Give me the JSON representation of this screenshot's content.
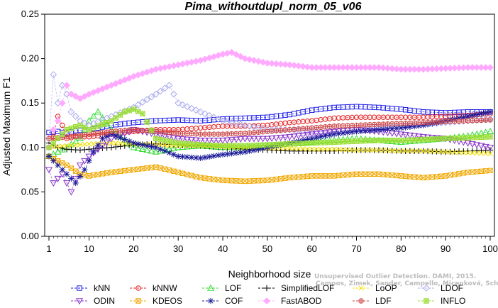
{
  "chart_data": {
    "type": "line",
    "title": "Pima_withoutdupl_norm_05_v06",
    "xlabel": "Neighborhood size",
    "ylabel": "Adjusted Maximum F1",
    "xlim": [
      1,
      100
    ],
    "ylim": [
      0.0,
      0.25
    ],
    "xticks": [
      1,
      10,
      20,
      30,
      40,
      50,
      60,
      70,
      80,
      90,
      100
    ],
    "yticks": [
      0.0,
      0.05,
      0.1,
      0.15,
      0.2,
      0.25
    ],
    "ytick_labels": [
      "0.00",
      "0.05",
      "0.10",
      "0.15",
      "0.20",
      "0.25"
    ],
    "grid": false,
    "legend_position": "bottom",
    "series": [
      {
        "name": "kNN",
        "color": "#1a1ae6",
        "marker": "square",
        "points": [
          [
            1,
            0.117
          ],
          [
            3,
            0.118
          ],
          [
            5,
            0.116
          ],
          [
            7,
            0.119
          ],
          [
            10,
            0.12
          ],
          [
            15,
            0.125
          ],
          [
            20,
            0.128
          ],
          [
            25,
            0.13
          ],
          [
            30,
            0.131
          ],
          [
            35,
            0.13
          ],
          [
            40,
            0.132
          ],
          [
            45,
            0.133
          ],
          [
            50,
            0.134
          ],
          [
            55,
            0.137
          ],
          [
            60,
            0.142
          ],
          [
            65,
            0.145
          ],
          [
            70,
            0.146
          ],
          [
            75,
            0.145
          ],
          [
            80,
            0.143
          ],
          [
            85,
            0.14
          ],
          [
            90,
            0.139
          ],
          [
            95,
            0.14
          ],
          [
            100,
            0.14
          ]
        ]
      },
      {
        "name": "kNNW",
        "color": "#e61a1a",
        "marker": "circle",
        "points": [
          [
            1,
            0.1
          ],
          [
            2,
            0.112
          ],
          [
            3,
            0.135
          ],
          [
            4,
            0.125
          ],
          [
            5,
            0.11
          ],
          [
            7,
            0.112
          ],
          [
            10,
            0.112
          ],
          [
            15,
            0.115
          ],
          [
            20,
            0.118
          ],
          [
            25,
            0.12
          ],
          [
            30,
            0.12
          ],
          [
            35,
            0.122
          ],
          [
            40,
            0.124
          ],
          [
            45,
            0.124
          ],
          [
            50,
            0.125
          ],
          [
            55,
            0.128
          ],
          [
            60,
            0.13
          ],
          [
            65,
            0.133
          ],
          [
            70,
            0.134
          ],
          [
            75,
            0.134
          ],
          [
            80,
            0.134
          ],
          [
            85,
            0.134
          ],
          [
            90,
            0.135
          ],
          [
            95,
            0.136
          ],
          [
            100,
            0.138
          ]
        ]
      },
      {
        "name": "LOF",
        "color": "#33dd33",
        "marker": "triangle-up",
        "points": [
          [
            1,
            0.09
          ],
          [
            3,
            0.095
          ],
          [
            5,
            0.1
          ],
          [
            8,
            0.11
          ],
          [
            10,
            0.13
          ],
          [
            12,
            0.14
          ],
          [
            15,
            0.12
          ],
          [
            20,
            0.1
          ],
          [
            25,
            0.095
          ],
          [
            30,
            0.1
          ],
          [
            35,
            0.102
          ],
          [
            40,
            0.1
          ],
          [
            45,
            0.1
          ],
          [
            50,
            0.102
          ],
          [
            55,
            0.104
          ],
          [
            60,
            0.106
          ],
          [
            65,
            0.108
          ],
          [
            70,
            0.11
          ],
          [
            75,
            0.108
          ],
          [
            80,
            0.106
          ],
          [
            85,
            0.108
          ],
          [
            90,
            0.11
          ],
          [
            95,
            0.113
          ],
          [
            100,
            0.118
          ]
        ]
      },
      {
        "name": "SimplifiedLOF",
        "color": "#000000",
        "marker": "plus",
        "points": [
          [
            1,
            0.105
          ],
          [
            3,
            0.1
          ],
          [
            5,
            0.098
          ],
          [
            8,
            0.097
          ],
          [
            10,
            0.098
          ],
          [
            15,
            0.1
          ],
          [
            20,
            0.103
          ],
          [
            25,
            0.104
          ],
          [
            30,
            0.103
          ],
          [
            35,
            0.102
          ],
          [
            40,
            0.1
          ],
          [
            45,
            0.098
          ],
          [
            50,
            0.097
          ],
          [
            55,
            0.096
          ],
          [
            60,
            0.096
          ],
          [
            65,
            0.096
          ],
          [
            70,
            0.097
          ],
          [
            75,
            0.097
          ],
          [
            80,
            0.096
          ],
          [
            85,
            0.096
          ],
          [
            90,
            0.095
          ],
          [
            95,
            0.096
          ],
          [
            100,
            0.097
          ]
        ]
      },
      {
        "name": "LoOP",
        "color": "#f0e000",
        "marker": "x",
        "points": [
          [
            1,
            0.1
          ],
          [
            5,
            0.102
          ],
          [
            10,
            0.104
          ],
          [
            15,
            0.105
          ],
          [
            20,
            0.104
          ],
          [
            25,
            0.103
          ],
          [
            30,
            0.102
          ],
          [
            35,
            0.102
          ],
          [
            40,
            0.101
          ],
          [
            45,
            0.1
          ],
          [
            50,
            0.099
          ],
          [
            55,
            0.099
          ],
          [
            60,
            0.098
          ],
          [
            65,
            0.098
          ],
          [
            70,
            0.097
          ],
          [
            75,
            0.097
          ],
          [
            80,
            0.096
          ],
          [
            85,
            0.096
          ],
          [
            90,
            0.095
          ],
          [
            95,
            0.094
          ],
          [
            100,
            0.093
          ]
        ]
      },
      {
        "name": "LDOF",
        "color": "#aaaaee",
        "marker": "diamond",
        "points": [
          [
            1,
            0.11
          ],
          [
            2,
            0.182
          ],
          [
            3,
            0.15
          ],
          [
            4,
            0.17
          ],
          [
            5,
            0.16
          ],
          [
            6,
            0.14
          ],
          [
            8,
            0.13
          ],
          [
            10,
            0.125
          ],
          [
            15,
            0.135
          ],
          [
            20,
            0.145
          ],
          [
            25,
            0.16
          ],
          [
            28,
            0.17
          ],
          [
            30,
            0.15
          ],
          [
            35,
            0.14
          ],
          [
            40,
            0.13
          ],
          [
            45,
            0.125
          ],
          [
            50,
            0.12
          ],
          [
            55,
            0.12
          ],
          [
            60,
            0.118
          ],
          [
            65,
            0.118
          ],
          [
            70,
            0.12
          ],
          [
            75,
            0.122
          ],
          [
            80,
            0.124
          ],
          [
            85,
            0.126
          ],
          [
            90,
            0.128
          ],
          [
            95,
            0.13
          ],
          [
            100,
            0.132
          ]
        ]
      },
      {
        "name": "ODIN",
        "color": "#8833cc",
        "marker": "triangle-down",
        "points": [
          [
            1,
            0.075
          ],
          [
            2,
            0.06
          ],
          [
            4,
            0.07
          ],
          [
            6,
            0.05
          ],
          [
            8,
            0.08
          ],
          [
            10,
            0.09
          ],
          [
            15,
            0.11
          ],
          [
            20,
            0.12
          ],
          [
            25,
            0.115
          ],
          [
            30,
            0.11
          ],
          [
            35,
            0.108
          ],
          [
            40,
            0.108
          ],
          [
            45,
            0.11
          ],
          [
            50,
            0.11
          ],
          [
            55,
            0.112
          ],
          [
            60,
            0.115
          ],
          [
            65,
            0.118
          ],
          [
            70,
            0.12
          ],
          [
            75,
            0.118
          ],
          [
            80,
            0.115
          ],
          [
            85,
            0.112
          ],
          [
            90,
            0.11
          ],
          [
            95,
            0.105
          ],
          [
            100,
            0.1
          ]
        ]
      },
      {
        "name": "KDEOS",
        "color": "#f0a800",
        "marker": "square-x",
        "points": [
          [
            1,
            0.09
          ],
          [
            3,
            0.085
          ],
          [
            5,
            0.08
          ],
          [
            8,
            0.07
          ],
          [
            10,
            0.068
          ],
          [
            15,
            0.072
          ],
          [
            20,
            0.075
          ],
          [
            25,
            0.078
          ],
          [
            30,
            0.072
          ],
          [
            35,
            0.066
          ],
          [
            40,
            0.063
          ],
          [
            45,
            0.062
          ],
          [
            50,
            0.063
          ],
          [
            55,
            0.066
          ],
          [
            60,
            0.068
          ],
          [
            65,
            0.068
          ],
          [
            70,
            0.07
          ],
          [
            75,
            0.07
          ],
          [
            80,
            0.068
          ],
          [
            85,
            0.066
          ],
          [
            90,
            0.068
          ],
          [
            95,
            0.072
          ],
          [
            100,
            0.074
          ]
        ]
      },
      {
        "name": "COF",
        "color": "#1a1a99",
        "marker": "asterisk",
        "points": [
          [
            1,
            0.09
          ],
          [
            3,
            0.08
          ],
          [
            5,
            0.07
          ],
          [
            7,
            0.06
          ],
          [
            9,
            0.075
          ],
          [
            11,
            0.095
          ],
          [
            13,
            0.11
          ],
          [
            15,
            0.115
          ],
          [
            20,
            0.105
          ],
          [
            25,
            0.1
          ],
          [
            30,
            0.09
          ],
          [
            35,
            0.088
          ],
          [
            40,
            0.092
          ],
          [
            45,
            0.095
          ],
          [
            50,
            0.1
          ],
          [
            55,
            0.105
          ],
          [
            60,
            0.11
          ],
          [
            65,
            0.115
          ],
          [
            70,
            0.118
          ],
          [
            75,
            0.12
          ],
          [
            80,
            0.122
          ],
          [
            85,
            0.125
          ],
          [
            90,
            0.13
          ],
          [
            95,
            0.135
          ],
          [
            100,
            0.14
          ]
        ]
      },
      {
        "name": "FastABOD",
        "color": "#ffaaff",
        "marker": "diamond-filled",
        "points": [
          [
            1,
            0.1
          ],
          [
            2,
            0.12
          ],
          [
            3,
            0.13
          ],
          [
            4,
            0.15
          ],
          [
            5,
            0.17
          ],
          [
            6,
            0.16
          ],
          [
            8,
            0.155
          ],
          [
            10,
            0.16
          ],
          [
            15,
            0.17
          ],
          [
            20,
            0.18
          ],
          [
            25,
            0.188
          ],
          [
            30,
            0.193
          ],
          [
            35,
            0.198
          ],
          [
            40,
            0.205
          ],
          [
            42,
            0.207
          ],
          [
            45,
            0.2
          ],
          [
            50,
            0.195
          ],
          [
            55,
            0.193
          ],
          [
            60,
            0.19
          ],
          [
            65,
            0.19
          ],
          [
            70,
            0.19
          ],
          [
            75,
            0.19
          ],
          [
            80,
            0.188
          ],
          [
            85,
            0.188
          ],
          [
            90,
            0.189
          ],
          [
            95,
            0.19
          ],
          [
            100,
            0.19
          ]
        ]
      },
      {
        "name": "LDF",
        "color": "#cc4444",
        "marker": "circle-plus",
        "points": [
          [
            1,
            0.11
          ],
          [
            5,
            0.112
          ],
          [
            10,
            0.115
          ],
          [
            15,
            0.118
          ],
          [
            20,
            0.12
          ],
          [
            25,
            0.118
          ],
          [
            30,
            0.116
          ],
          [
            35,
            0.115
          ],
          [
            40,
            0.115
          ],
          [
            45,
            0.116
          ],
          [
            50,
            0.118
          ],
          [
            55,
            0.12
          ],
          [
            60,
            0.122
          ],
          [
            65,
            0.124
          ],
          [
            70,
            0.125
          ],
          [
            75,
            0.126
          ],
          [
            80,
            0.127
          ],
          [
            85,
            0.128
          ],
          [
            90,
            0.129
          ],
          [
            95,
            0.13
          ],
          [
            100,
            0.131
          ]
        ]
      },
      {
        "name": "INFLO",
        "color": "#99dd33",
        "marker": "square-star",
        "points": [
          [
            1,
            0.1
          ],
          [
            3,
            0.11
          ],
          [
            5,
            0.12
          ],
          [
            8,
            0.125
          ],
          [
            10,
            0.12
          ],
          [
            15,
            0.13
          ],
          [
            18,
            0.14
          ],
          [
            20,
            0.143
          ],
          [
            22,
            0.138
          ],
          [
            25,
            0.11
          ],
          [
            30,
            0.105
          ],
          [
            35,
            0.103
          ],
          [
            40,
            0.102
          ],
          [
            45,
            0.102
          ],
          [
            50,
            0.103
          ],
          [
            55,
            0.104
          ],
          [
            60,
            0.105
          ],
          [
            65,
            0.106
          ],
          [
            70,
            0.107
          ],
          [
            75,
            0.108
          ],
          [
            80,
            0.108
          ],
          [
            85,
            0.109
          ],
          [
            90,
            0.11
          ],
          [
            95,
            0.111
          ],
          [
            100,
            0.112
          ]
        ]
      }
    ],
    "annotation": "Campos, Zimek, Sander, Campello, Micenková, Schubert, Assent, Houle",
    "annotation_prefix": "Unsupervised Outlier Detection. DAMI, 2015."
  }
}
